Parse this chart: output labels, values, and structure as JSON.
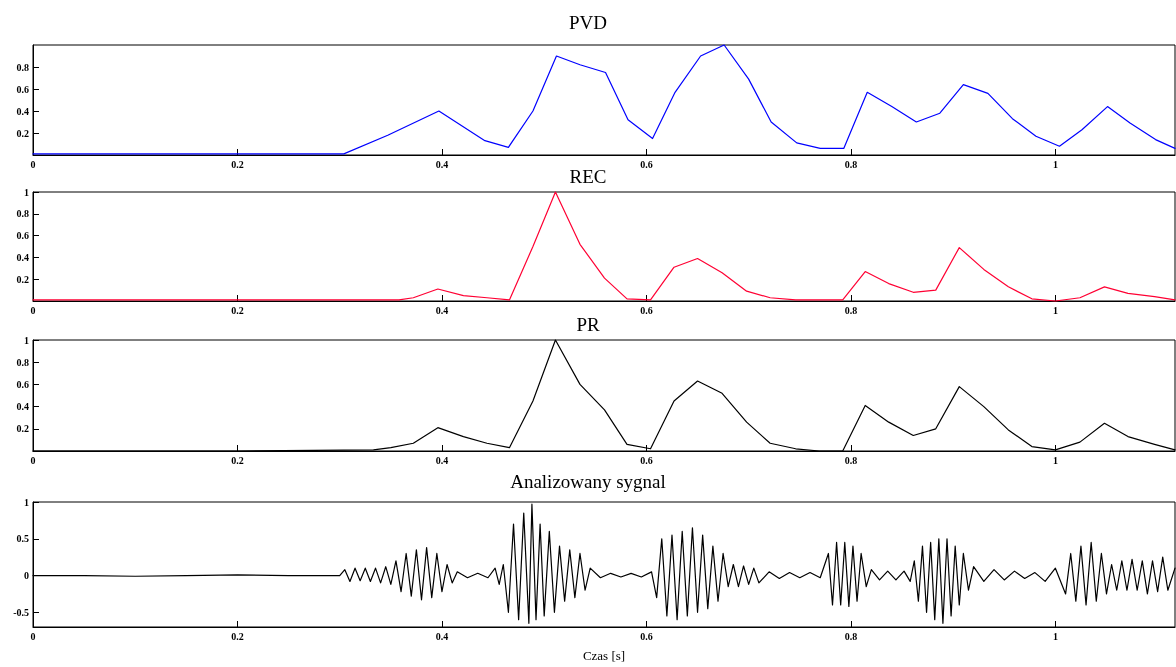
{
  "chart_data": [
    {
      "type": "line",
      "title": "PVD",
      "marker": "none",
      "line_style": "solid",
      "grid": false,
      "xlim": [
        0,
        1.117
      ],
      "xticks": [
        0,
        0.2,
        0.4,
        0.6,
        0.8,
        1
      ],
      "ylim": [
        0,
        1
      ],
      "yticks": [
        0.2,
        0.4,
        0.6,
        0.8
      ],
      "x": [
        0,
        0.1,
        0.2,
        0.304,
        0.347,
        0.397,
        0.442,
        0.465,
        0.489,
        0.512,
        0.535,
        0.56,
        0.582,
        0.606,
        0.628,
        0.653,
        0.676,
        0.7,
        0.722,
        0.747,
        0.77,
        0.793,
        0.816,
        0.84,
        0.864,
        0.887,
        0.91,
        0.934,
        0.958,
        0.981,
        1.004,
        1.026,
        1.051,
        1.073,
        1.098,
        1.117
      ],
      "series": [
        {
          "color": "#0000ff",
          "values": [
            0.01,
            0.01,
            0.01,
            0.01,
            0.18,
            0.4,
            0.13,
            0.07,
            0.4,
            0.9,
            0.82,
            0.75,
            0.32,
            0.15,
            0.57,
            0.9,
            1.0,
            0.69,
            0.3,
            0.11,
            0.06,
            0.06,
            0.57,
            0.44,
            0.3,
            0.38,
            0.64,
            0.56,
            0.33,
            0.17,
            0.08,
            0.23,
            0.44,
            0.29,
            0.14,
            0.06
          ]
        }
      ]
    },
    {
      "type": "line",
      "title": "REC",
      "marker": "none",
      "line_style": "solid",
      "grid": false,
      "xlim": [
        0,
        1.117
      ],
      "xticks": [
        0,
        0.2,
        0.4,
        0.6,
        0.8,
        1
      ],
      "ylim": [
        0,
        1
      ],
      "yticks": [
        0.2,
        0.4,
        0.6,
        0.8,
        1
      ],
      "x": [
        0,
        0.1,
        0.2,
        0.3,
        0.358,
        0.372,
        0.396,
        0.421,
        0.444,
        0.466,
        0.489,
        0.511,
        0.535,
        0.559,
        0.581,
        0.604,
        0.627,
        0.65,
        0.674,
        0.698,
        0.721,
        0.746,
        0.769,
        0.792,
        0.814,
        0.837,
        0.861,
        0.883,
        0.906,
        0.93,
        0.954,
        0.977,
        1.0,
        1.024,
        1.048,
        1.071,
        1.097,
        1.117
      ],
      "series": [
        {
          "color": "#ff0033",
          "values": [
            0.01,
            0.01,
            0.01,
            0.01,
            0.01,
            0.03,
            0.11,
            0.05,
            0.03,
            0.01,
            0.5,
            1.0,
            0.52,
            0.21,
            0.02,
            0.01,
            0.31,
            0.39,
            0.26,
            0.09,
            0.03,
            0.01,
            0.01,
            0.01,
            0.27,
            0.16,
            0.08,
            0.1,
            0.49,
            0.29,
            0.13,
            0.02,
            0.0,
            0.03,
            0.13,
            0.07,
            0.04,
            0.01
          ]
        }
      ]
    },
    {
      "type": "line",
      "title": "PR",
      "marker": "none",
      "line_style": "solid",
      "grid": false,
      "xlim": [
        0,
        1.117
      ],
      "xticks": [
        0,
        0.2,
        0.4,
        0.6,
        0.8,
        1
      ],
      "ylim": [
        0,
        1
      ],
      "yticks": [
        0.2,
        0.4,
        0.6,
        0.8,
        1
      ],
      "x": [
        0,
        0.1,
        0.2,
        0.333,
        0.35,
        0.372,
        0.396,
        0.421,
        0.444,
        0.466,
        0.489,
        0.511,
        0.535,
        0.559,
        0.581,
        0.604,
        0.627,
        0.65,
        0.674,
        0.698,
        0.721,
        0.746,
        0.769,
        0.792,
        0.814,
        0.837,
        0.861,
        0.883,
        0.906,
        0.93,
        0.954,
        0.977,
        1.0,
        1.024,
        1.048,
        1.071,
        1.097,
        1.117
      ],
      "series": [
        {
          "color": "#000000",
          "values": [
            0,
            0,
            0,
            0.01,
            0.03,
            0.07,
            0.21,
            0.13,
            0.07,
            0.03,
            0.45,
            1.0,
            0.6,
            0.37,
            0.06,
            0.02,
            0.45,
            0.63,
            0.52,
            0.26,
            0.07,
            0.02,
            0.0,
            0.0,
            0.41,
            0.26,
            0.14,
            0.2,
            0.58,
            0.4,
            0.19,
            0.04,
            0.01,
            0.08,
            0.25,
            0.13,
            0.06,
            0.01
          ]
        }
      ]
    },
    {
      "type": "line",
      "title": "Analizowany sygnal",
      "xlabel": "Czas [s]",
      "marker": "none",
      "line_style": "solid",
      "grid": false,
      "xlim": [
        0,
        1.117
      ],
      "xticks": [
        0,
        0.2,
        0.4,
        0.6,
        0.8,
        1
      ],
      "ylim": [
        -0.7,
        1
      ],
      "yticks": [
        -0.5,
        0,
        0.5,
        1
      ],
      "x": [
        0,
        0.05,
        0.1,
        0.15,
        0.2,
        0.25,
        0.3,
        0.305,
        0.31,
        0.315,
        0.32,
        0.325,
        0.33,
        0.335,
        0.34,
        0.345,
        0.35,
        0.355,
        0.36,
        0.365,
        0.37,
        0.375,
        0.38,
        0.385,
        0.39,
        0.395,
        0.4,
        0.405,
        0.41,
        0.415,
        0.425,
        0.435,
        0.445,
        0.452,
        0.456,
        0.46,
        0.465,
        0.47,
        0.475,
        0.48,
        0.485,
        0.488,
        0.492,
        0.496,
        0.5,
        0.505,
        0.51,
        0.515,
        0.52,
        0.525,
        0.53,
        0.535,
        0.54,
        0.545,
        0.555,
        0.565,
        0.575,
        0.585,
        0.595,
        0.605,
        0.61,
        0.615,
        0.62,
        0.625,
        0.63,
        0.635,
        0.64,
        0.645,
        0.65,
        0.655,
        0.66,
        0.665,
        0.67,
        0.675,
        0.68,
        0.685,
        0.69,
        0.695,
        0.7,
        0.705,
        0.71,
        0.72,
        0.73,
        0.74,
        0.75,
        0.76,
        0.77,
        0.778,
        0.782,
        0.786,
        0.79,
        0.794,
        0.798,
        0.802,
        0.806,
        0.81,
        0.815,
        0.82,
        0.828,
        0.836,
        0.844,
        0.852,
        0.858,
        0.862,
        0.866,
        0.87,
        0.874,
        0.878,
        0.882,
        0.886,
        0.89,
        0.894,
        0.898,
        0.902,
        0.906,
        0.91,
        0.915,
        0.92,
        0.93,
        0.94,
        0.95,
        0.96,
        0.97,
        0.98,
        0.99,
        1.0,
        1.01,
        1.015,
        1.02,
        1.025,
        1.03,
        1.035,
        1.04,
        1.045,
        1.05,
        1.055,
        1.06,
        1.065,
        1.07,
        1.075,
        1.08,
        1.085,
        1.09,
        1.095,
        1.1,
        1.105,
        1.11,
        1.117
      ],
      "series": [
        {
          "color": "#000000",
          "values": [
            0,
            0,
            -0.01,
            0,
            0.01,
            0,
            0,
            0.08,
            -0.08,
            0.1,
            -0.07,
            0.1,
            -0.08,
            0.1,
            -0.1,
            0.12,
            -0.12,
            0.2,
            -0.22,
            0.3,
            -0.28,
            0.35,
            -0.33,
            0.38,
            -0.3,
            0.3,
            -0.22,
            0.15,
            -0.1,
            0.05,
            -0.03,
            0.03,
            -0.03,
            0.1,
            -0.12,
            0.15,
            -0.5,
            0.7,
            -0.6,
            0.85,
            -0.65,
            0.97,
            -0.6,
            0.7,
            -0.55,
            0.6,
            -0.5,
            0.4,
            -0.35,
            0.35,
            -0.3,
            0.3,
            -0.2,
            0.1,
            -0.03,
            0.03,
            -0.02,
            0.03,
            -0.02,
            0.05,
            -0.3,
            0.5,
            -0.55,
            0.55,
            -0.6,
            0.6,
            -0.55,
            0.65,
            -0.5,
            0.55,
            -0.45,
            0.4,
            -0.35,
            0.3,
            -0.15,
            0.15,
            -0.15,
            0.13,
            -0.12,
            0.1,
            -0.1,
            0.05,
            -0.04,
            0.04,
            -0.03,
            0.04,
            -0.03,
            0.3,
            -0.4,
            0.45,
            -0.4,
            0.45,
            -0.42,
            0.4,
            -0.35,
            0.3,
            -0.15,
            0.08,
            -0.06,
            0.06,
            -0.06,
            0.06,
            -0.08,
            0.2,
            -0.35,
            0.4,
            -0.5,
            0.45,
            -0.6,
            0.5,
            -0.65,
            0.5,
            -0.55,
            0.4,
            -0.4,
            0.3,
            -0.2,
            0.12,
            -0.08,
            0.08,
            -0.06,
            0.06,
            -0.04,
            0.04,
            -0.08,
            0.1,
            -0.25,
            0.3,
            -0.35,
            0.4,
            -0.4,
            0.45,
            -0.35,
            0.3,
            -0.25,
            0.15,
            -0.2,
            0.2,
            -0.2,
            0.22,
            -0.2,
            0.2,
            -0.25,
            0.2,
            -0.22,
            0.25,
            -0.2,
            0.1
          ]
        }
      ]
    }
  ]
}
